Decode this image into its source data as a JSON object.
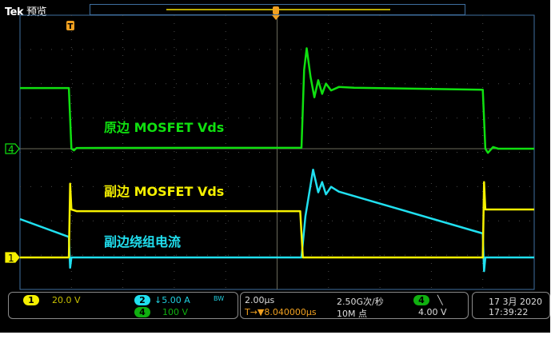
{
  "header": {
    "brand": "Tek",
    "mode": "预览"
  },
  "colors": {
    "ch1": "#f5f000",
    "ch2": "#20e0f0",
    "ch4": "#10e010",
    "trigger": "#f0a020",
    "graticule": "#4a4a4a",
    "frame": "#3f6f9f"
  },
  "annotations": {
    "ch4_label": "原边 MOSFET Vds",
    "ch1_label": "副边 MOSFET Vds",
    "ch2_label": "副边绕组电流"
  },
  "markers": {
    "ch4": "4",
    "ch1": "1",
    "trigger": "T"
  },
  "status": {
    "ch1": {
      "num": "1",
      "scale": "20.0 V"
    },
    "ch2": {
      "num": "2",
      "scale": "↓5.00 A",
      "bw": "BW"
    },
    "ch4": {
      "num": "4",
      "scale": "100 V"
    },
    "timebase": "2.00µs",
    "trigger_pos": "T→▼8.040000µs",
    "sample_rate": "2.50G次/秒",
    "record_length": "10M 点",
    "trig_source": "4",
    "trig_slope": "╲",
    "trig_level": "4.00 V",
    "date": "17 3月 2020",
    "time": "17:39:22"
  },
  "chart_data": {
    "type": "line",
    "xlabel": "",
    "ylabel": "",
    "x_units": "µs",
    "x_per_div": 2,
    "xlim": [
      -10,
      10
    ],
    "grid": true,
    "series": [
      {
        "name": "原边 MOSFET Vds",
        "channel": 4,
        "units": "V",
        "per_div": 100,
        "points": [
          [
            -10,
            177
          ],
          [
            -8.1,
            177
          ],
          [
            -8.0,
            0
          ],
          [
            -7.9,
            -5
          ],
          [
            -7.8,
            2
          ],
          [
            0.95,
            3
          ],
          [
            1.05,
            230
          ],
          [
            1.15,
            293
          ],
          [
            1.3,
            210
          ],
          [
            1.45,
            150
          ],
          [
            1.6,
            200
          ],
          [
            1.75,
            160
          ],
          [
            1.9,
            190
          ],
          [
            2.1,
            170
          ],
          [
            2.4,
            180
          ],
          [
            3,
            178
          ],
          [
            8.0,
            172
          ],
          [
            8.1,
            0
          ],
          [
            8.2,
            -12
          ],
          [
            8.4,
            5
          ],
          [
            8.6,
            0
          ],
          [
            10,
            0
          ]
        ]
      },
      {
        "name": "副边 MOSFET Vds",
        "channel": 1,
        "units": "V",
        "per_div": 20,
        "points": [
          [
            -10,
            0
          ],
          [
            -8.1,
            0
          ],
          [
            -8.05,
            43
          ],
          [
            -8.0,
            28
          ],
          [
            -7.8,
            27
          ],
          [
            0.9,
            27
          ],
          [
            1.0,
            0
          ],
          [
            8.0,
            0
          ],
          [
            8.05,
            44
          ],
          [
            8.1,
            28
          ],
          [
            10,
            28
          ]
        ]
      },
      {
        "name": "副边绕组电流",
        "channel": 2,
        "units": "A",
        "per_div": 5,
        "points": [
          [
            -10,
            5.6
          ],
          [
            -8.1,
            3.0
          ],
          [
            -8.05,
            -1.5
          ],
          [
            -8.0,
            0
          ],
          [
            0.95,
            0
          ],
          [
            1.1,
            6
          ],
          [
            1.4,
            12.8
          ],
          [
            1.6,
            9.5
          ],
          [
            1.75,
            11
          ],
          [
            1.9,
            9.2
          ],
          [
            2.1,
            10.3
          ],
          [
            2.4,
            9.6
          ],
          [
            8.0,
            3.5
          ],
          [
            8.05,
            -2
          ],
          [
            8.1,
            0
          ],
          [
            10,
            0
          ]
        ]
      }
    ]
  }
}
